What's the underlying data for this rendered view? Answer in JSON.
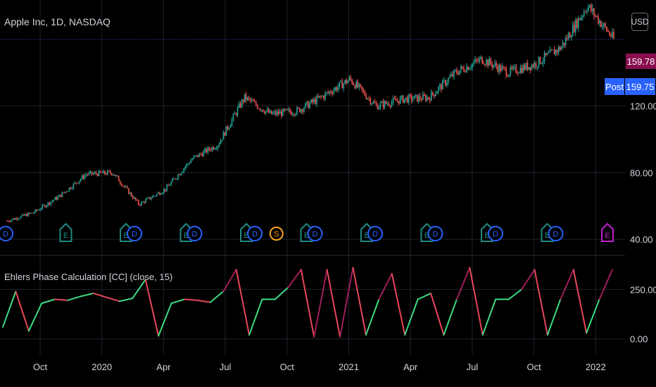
{
  "header": {
    "symbol_label": "Apple Inc, 1D, NASDAQ",
    "currency": "USD"
  },
  "price_scale": {
    "ticks": [
      "120.00",
      "80.00",
      "40.00"
    ],
    "last_price": "159.78",
    "post_label": "Post",
    "post_price": "159.75"
  },
  "indicator": {
    "label": "Ehlers Phase Calculation [CC] (close, 15)",
    "ticks": [
      "250.00",
      "0.00"
    ]
  },
  "time_axis": {
    "labels": [
      "Oct",
      "2020",
      "Apr",
      "Jul",
      "Oct",
      "2021",
      "Apr",
      "Jul",
      "Oct",
      "2022"
    ]
  },
  "events": [
    {
      "type": "D",
      "x": 0
    },
    {
      "type": "E",
      "x": 1
    },
    {
      "type": "E",
      "x": 2
    },
    {
      "type": "D",
      "x": 2
    },
    {
      "type": "E",
      "x": 3
    },
    {
      "type": "D",
      "x": 3
    },
    {
      "type": "E",
      "x": 4
    },
    {
      "type": "D",
      "x": 4
    },
    {
      "type": "S",
      "x": 4.5
    },
    {
      "type": "E",
      "x": 5
    },
    {
      "type": "D",
      "x": 5
    },
    {
      "type": "E",
      "x": 6
    },
    {
      "type": "D",
      "x": 6
    },
    {
      "type": "E",
      "x": 7
    },
    {
      "type": "D",
      "x": 7
    },
    {
      "type": "E",
      "x": 8
    },
    {
      "type": "D",
      "x": 8
    },
    {
      "type": "E",
      "x": 9
    },
    {
      "type": "D",
      "x": 9
    },
    {
      "type": "E",
      "x": 10
    }
  ],
  "colors": {
    "background": "#000000",
    "grid": "#1e222d",
    "up": "#26a69a",
    "down": "#ef5350",
    "phase_up": "#3cdc82",
    "phase_down": "#e8475a",
    "phase_dark": "#a0205a",
    "last_price_line": "#3f51b5",
    "dividend": "#2962ff",
    "earnings": "#1f8a80",
    "split": "#f7a21b",
    "upcoming_earnings": "#c01ed0"
  },
  "chart_data": [
    {
      "type": "candlestick",
      "title": "Apple Inc, 1D, NASDAQ",
      "ylim": [
        35,
        175
      ],
      "x": [
        "2019-08",
        "2019-10",
        "2019-12",
        "2020-01",
        "2020-02",
        "2020-03",
        "2020-04",
        "2020-06",
        "2020-07",
        "2020-08",
        "2020-09",
        "2020-10",
        "2020-12",
        "2021-01",
        "2021-03",
        "2021-04",
        "2021-05",
        "2021-07",
        "2021-08",
        "2021-09",
        "2021-10",
        "2021-11",
        "2021-12",
        "2022-01"
      ],
      "close": [
        51,
        56,
        66,
        79,
        80,
        61,
        70,
        88,
        97,
        125,
        115,
        117,
        126,
        136,
        120,
        124,
        125,
        140,
        148,
        140,
        145,
        155,
        180,
        160
      ],
      "last_price": 159.78,
      "post_price": 159.75
    },
    {
      "type": "line",
      "title": "Ehlers Phase Calculation [CC] (close, 15)",
      "ylim": [
        -30,
        390
      ],
      "series": [
        {
          "values": [
            60,
            240,
            40,
            180,
            200,
            195,
            215,
            230,
            210,
            190,
            205,
            300,
            15,
            180,
            200,
            195,
            185,
            240,
            350,
            20,
            200,
            200,
            260,
            350,
            10,
            350,
            10,
            360,
            20,
            200,
            330,
            20,
            200,
            230,
            20,
            200,
            360,
            20,
            200,
            200,
            250,
            350,
            20,
            200,
            350,
            30,
            200,
            350
          ]
        }
      ]
    }
  ]
}
